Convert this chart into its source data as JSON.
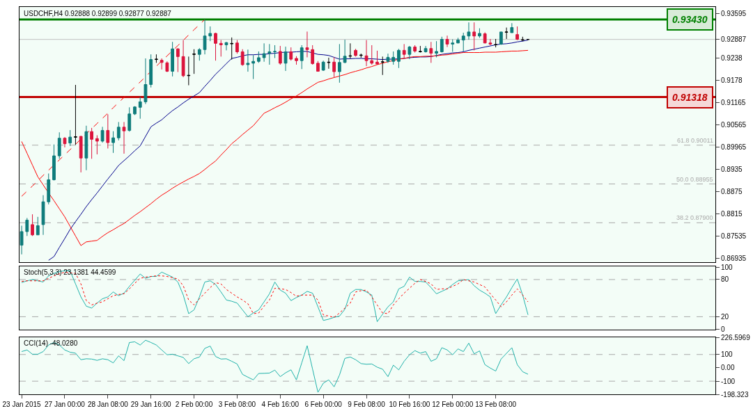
{
  "chart_data": [
    {
      "type": "candlestick",
      "title": "USDCHF,H4 0.92888 0.92899 0.92877 0.92887",
      "ohlc": [
        [
          0.8729,
          0.8782,
          0.8704,
          0.8766
        ],
        [
          0.8766,
          0.8803,
          0.8754,
          0.8797
        ],
        [
          0.8785,
          0.8813,
          0.8754,
          0.8757
        ],
        [
          0.8757,
          0.8806,
          0.8757,
          0.8782
        ],
        [
          0.8785,
          0.8865,
          0.8757,
          0.8847
        ],
        [
          0.8847,
          0.8924,
          0.884,
          0.8907
        ],
        [
          0.8907,
          0.9003,
          0.8905,
          0.8972
        ],
        [
          0.8972,
          0.9036,
          0.8964,
          0.902
        ],
        [
          0.902,
          0.9023,
          0.8995,
          0.9005
        ],
        [
          0.9007,
          0.9042,
          0.8999,
          0.9023
        ],
        [
          0.9024,
          0.9165,
          0.9002,
          0.9023
        ],
        [
          0.9025,
          0.9026,
          0.8927,
          0.8966
        ],
        [
          0.8966,
          0.9054,
          0.8933,
          0.9038
        ],
        [
          0.9038,
          0.9048,
          0.8964,
          0.9017
        ],
        [
          0.9019,
          0.9028,
          0.8976,
          0.9012
        ],
        [
          0.9012,
          0.9051,
          0.9008,
          0.9041
        ],
        [
          0.9041,
          0.9085,
          0.8992,
          0.9008
        ],
        [
          0.9008,
          0.9039,
          0.898,
          0.9021
        ],
        [
          0.9021,
          0.9064,
          0.9014,
          0.905
        ],
        [
          0.905,
          0.9064,
          0.8978,
          0.904
        ],
        [
          0.9041,
          0.9104,
          0.9038,
          0.9086
        ],
        [
          0.9086,
          0.9107,
          0.9083,
          0.9105
        ],
        [
          0.9104,
          0.9133,
          0.9073,
          0.9119
        ],
        [
          0.9119,
          0.9237,
          0.9113,
          0.9166
        ],
        [
          0.9166,
          0.9248,
          0.9158,
          0.9234
        ],
        [
          0.9234,
          0.9248,
          0.9225,
          0.9235
        ],
        [
          0.9232,
          0.9237,
          0.9207,
          0.9226
        ],
        [
          0.9225,
          0.9229,
          0.92,
          0.9202
        ],
        [
          0.9202,
          0.9282,
          0.9188,
          0.9263
        ],
        [
          0.9263,
          0.9265,
          0.92,
          0.9242
        ],
        [
          0.9242,
          0.9287,
          0.9186,
          0.919
        ],
        [
          0.919,
          0.9242,
          0.9164,
          0.9191
        ],
        [
          0.9248,
          0.9262,
          0.9195,
          0.9249
        ],
        [
          0.9248,
          0.9265,
          0.9231,
          0.9261
        ],
        [
          0.9261,
          0.9343,
          0.9248,
          0.9298
        ],
        [
          0.9298,
          0.9324,
          0.9284,
          0.9305
        ],
        [
          0.9305,
          0.9307,
          0.9231,
          0.9278
        ],
        [
          0.9278,
          0.9287,
          0.9242,
          0.9274
        ],
        [
          0.9274,
          0.9282,
          0.9259,
          0.928
        ],
        [
          0.9278,
          0.9294,
          0.9234,
          0.9277
        ],
        [
          0.9279,
          0.9287,
          0.925,
          0.9255
        ],
        [
          0.9255,
          0.9262,
          0.9217,
          0.922
        ],
        [
          0.922,
          0.9261,
          0.9201,
          0.9224
        ],
        [
          0.9224,
          0.9246,
          0.9181,
          0.9229
        ],
        [
          0.9229,
          0.9256,
          0.9225,
          0.9239
        ],
        [
          0.9239,
          0.9278,
          0.9228,
          0.925
        ],
        [
          0.9251,
          0.9276,
          0.922,
          0.9255
        ],
        [
          0.9255,
          0.9273,
          0.9238,
          0.9256
        ],
        [
          0.9256,
          0.9271,
          0.922,
          0.9224
        ],
        [
          0.9224,
          0.9269,
          0.9203,
          0.9255
        ],
        [
          0.9255,
          0.9267,
          0.9231,
          0.9235
        ],
        [
          0.9237,
          0.9243,
          0.922,
          0.9231
        ],
        [
          0.9231,
          0.9273,
          0.9208,
          0.9266
        ],
        [
          0.9266,
          0.931,
          0.924,
          0.9261
        ],
        [
          0.9261,
          0.9273,
          0.922,
          0.9223
        ],
        [
          0.9224,
          0.923,
          0.9201,
          0.9202
        ],
        [
          0.9205,
          0.9231,
          0.9203,
          0.9227
        ],
        [
          0.9227,
          0.9239,
          0.9209,
          0.9226
        ],
        [
          0.9227,
          0.924,
          0.9185,
          0.9201
        ],
        [
          0.9201,
          0.9276,
          0.9171,
          0.9226
        ],
        [
          0.9226,
          0.9288,
          0.9224,
          0.9243
        ],
        [
          0.9243,
          0.9278,
          0.9237,
          0.9244
        ],
        [
          0.9259,
          0.9263,
          0.9242,
          0.9245
        ],
        [
          0.9245,
          0.925,
          0.9239,
          0.9246
        ],
        [
          0.9244,
          0.9287,
          0.9216,
          0.9231
        ],
        [
          0.9231,
          0.9273,
          0.922,
          0.9224
        ],
        [
          0.9227,
          0.9258,
          0.922,
          0.9222
        ],
        [
          0.9228,
          0.9242,
          0.9192,
          0.9227
        ],
        [
          0.9229,
          0.925,
          0.9225,
          0.924
        ],
        [
          0.9229,
          0.9256,
          0.922,
          0.924
        ],
        [
          0.9229,
          0.9263,
          0.9211,
          0.9259
        ],
        [
          0.9259,
          0.9276,
          0.9237,
          0.9248
        ],
        [
          0.9248,
          0.9271,
          0.9235,
          0.9268
        ],
        [
          0.9268,
          0.9273,
          0.9253,
          0.9257
        ],
        [
          0.9255,
          0.9271,
          0.9253,
          0.9256
        ],
        [
          0.9255,
          0.9271,
          0.9253,
          0.9264
        ],
        [
          0.9264,
          0.9282,
          0.9225,
          0.9251
        ],
        [
          0.9251,
          0.9284,
          0.924,
          0.9256
        ],
        [
          0.9255,
          0.9296,
          0.9253,
          0.9289
        ],
        [
          0.9289,
          0.9299,
          0.9268,
          0.9276
        ],
        [
          0.9276,
          0.9289,
          0.9255,
          0.9279
        ],
        [
          0.9279,
          0.9293,
          0.9278,
          0.9287
        ],
        [
          0.9287,
          0.9307,
          0.9256,
          0.9298
        ],
        [
          0.9298,
          0.9335,
          0.9288,
          0.9309
        ],
        [
          0.9309,
          0.9335,
          0.9259,
          0.9298
        ],
        [
          0.9298,
          0.9319,
          0.9293,
          0.9305
        ],
        [
          0.9304,
          0.9308,
          0.9278,
          0.9279
        ],
        [
          0.9279,
          0.929,
          0.9273,
          0.9276
        ],
        [
          0.9275,
          0.929,
          0.9267,
          0.9274
        ],
        [
          0.9276,
          0.9309,
          0.9274,
          0.9309
        ],
        [
          0.9308,
          0.9321,
          0.929,
          0.9309
        ],
        [
          0.9307,
          0.9333,
          0.9307,
          0.9321
        ],
        [
          0.9302,
          0.9324,
          0.9287,
          0.9289
        ],
        [
          0.9288,
          0.9296,
          0.9284,
          0.9287
        ],
        [
          0.92888,
          0.92899,
          0.92877,
          0.92887
        ]
      ],
      "colors": [
        "#0e7c7b",
        "#0e7c7b",
        "#dc143c",
        "#0e7c7b",
        "#0e7c7b",
        "#0e7c7b",
        "#0e7c7b",
        "#0e7c7b",
        "#dc143c",
        "#0e7c7b",
        "#000000",
        "#dc143c",
        "#0e7c7b",
        "#dc143c",
        "#dc143c",
        "#0e7c7b",
        "#dc143c",
        "#0e7c7b",
        "#0e7c7b",
        "#dc143c",
        "#0e7c7b",
        "#0e7c7b",
        "#0e7c7b",
        "#0e7c7b",
        "#0e7c7b",
        "#000000",
        "#dc143c",
        "#dc143c",
        "#0e7c7b",
        "#dc143c",
        "#dc143c",
        "#000000",
        "#000000",
        "#0e7c7b",
        "#0e7c7b",
        "#0e7c7b",
        "#dc143c",
        "#dc143c",
        "#0e7c7b",
        "#000000",
        "#dc143c",
        "#dc143c",
        "#0e7c7b",
        "#0e7c7b",
        "#0e7c7b",
        "#0e7c7b",
        "#0e7c7b",
        "#0e7c7b",
        "#dc143c",
        "#0e7c7b",
        "#dc143c",
        "#dc143c",
        "#0e7c7b",
        "#dc143c",
        "#dc143c",
        "#dc143c",
        "#0e7c7b",
        "#000000",
        "#dc143c",
        "#0e7c7b",
        "#0e7c7b",
        "#000000",
        "#dc143c",
        "#000000",
        "#dc143c",
        "#dc143c",
        "#dc143c",
        "#000000",
        "#0e7c7b",
        "#0e7c7b",
        "#0e7c7b",
        "#dc143c",
        "#0e7c7b",
        "#dc143c",
        "#000000",
        "#0e7c7b",
        "#dc143c",
        "#0e7c7b",
        "#0e7c7b",
        "#dc143c",
        "#0e7c7b",
        "#0e7c7b",
        "#0e7c7b",
        "#0e7c7b",
        "#dc143c",
        "#0e7c7b",
        "#dc143c",
        "#dc143c",
        "#000000",
        "#0e7c7b",
        "#000000",
        "#0e7c7b",
        "#dc143c",
        "#000000",
        "#000000"
      ],
      "series": [
        {
          "type": "line",
          "color": "#00008b",
          "values": [
            null,
            null,
            null,
            null,
            null,
            0.8688,
            0.8698,
            0.8723,
            0.8747,
            0.8772,
            0.8793,
            0.8813,
            0.8834,
            0.8853,
            0.8871,
            0.889,
            0.8909,
            0.8927,
            0.8946,
            0.8959,
            0.8972,
            0.8986,
            0.8999,
            0.9025,
            0.9051,
            0.9061,
            0.907,
            0.9083,
            0.9095,
            0.9105,
            0.9116,
            0.9126,
            0.9135,
            0.9144,
            0.9161,
            0.9177,
            0.9194,
            0.9208,
            0.9223,
            0.9237,
            0.924,
            0.9244,
            0.9247,
            0.9247,
            0.9248,
            0.9248,
            0.925,
            0.9251,
            0.9253,
            0.9254,
            0.9254,
            0.9255,
            0.9256,
            0.9256,
            0.9252,
            0.9248,
            0.9247,
            0.9245,
            0.924,
            0.9235,
            0.9236,
            0.9236,
            0.9237,
            0.9237,
            0.9236,
            0.9236,
            0.9235,
            0.9234,
            0.9235,
            0.9235,
            0.9236,
            0.9237,
            0.9239,
            0.924,
            0.9241,
            0.9241,
            0.9242,
            0.9245,
            0.9248,
            0.925,
            0.9252,
            0.9253,
            0.9255,
            0.9259,
            0.9262,
            0.9265,
            0.9268,
            0.9271,
            0.9274,
            0.9276,
            0.9277,
            0.9279,
            0.9282,
            0.9284,
            0.9287
          ]
        },
        {
          "type": "line",
          "color": "#ff0000",
          "values": [
            0.9011,
            0.8979,
            0.8947,
            0.8915,
            0.8893,
            0.8871,
            0.885,
            0.8828,
            0.8806,
            0.878,
            0.8754,
            0.8728,
            0.8738,
            0.874,
            0.8742,
            0.8753,
            0.8763,
            0.8771,
            0.878,
            0.8788,
            0.8799,
            0.881,
            0.882,
            0.8831,
            0.8842,
            0.8854,
            0.8865,
            0.8874,
            0.8884,
            0.8893,
            0.8901,
            0.8909,
            0.8916,
            0.8924,
            0.8935,
            0.8947,
            0.8958,
            0.8974,
            0.8989,
            0.9005,
            0.9017,
            0.903,
            0.9042,
            0.9054,
            0.9071,
            0.9088,
            0.9095,
            0.9103,
            0.911,
            0.9118,
            0.9127,
            0.9135,
            0.9144,
            0.9154,
            0.9163,
            0.9172,
            0.9176,
            0.9181,
            0.9185,
            0.9189,
            0.9193,
            0.9198,
            0.9202,
            0.9206,
            0.9211,
            0.9215,
            0.922,
            0.9224,
            0.9228,
            0.9231,
            0.9235,
            0.9237,
            0.924,
            0.9242,
            0.9242,
            0.9243,
            0.9243,
            0.9244,
            0.9246,
            0.9247,
            0.9249,
            0.9251,
            0.9253,
            0.9253,
            0.9253,
            0.9253,
            0.9254,
            0.9254,
            0.9254,
            0.9255,
            0.9256,
            0.9257,
            0.9257,
            0.9258,
            0.9259
          ]
        },
        {
          "type": "line",
          "color": "#ff0000",
          "line_style": "dashed",
          "values": [
            0.8862,
            0.8876,
            0.889,
            0.8904,
            0.8919,
            0.8933,
            0.8947,
            0.8961,
            0.8975,
            0.8989,
            0.9003,
            0.9018,
            0.9032,
            0.9046,
            0.906,
            0.9074,
            0.9088,
            0.9103,
            0.9117,
            0.9131,
            0.9145,
            0.9159,
            0.9173,
            0.9187,
            0.9202,
            0.9216,
            0.923,
            0.9244,
            0.9258,
            0.9272,
            0.9286,
            0.9301,
            0.9315,
            0.9329,
            0.9343,
            null,
            null,
            null,
            null,
            null,
            null,
            null,
            null,
            null,
            null,
            null,
            null,
            null,
            null,
            null,
            null,
            null,
            null,
            null,
            null,
            null,
            null,
            null,
            null,
            null,
            null,
            null,
            null,
            null,
            null,
            null,
            null,
            null,
            null,
            null,
            null,
            null,
            null,
            null,
            null,
            null,
            null,
            null,
            null,
            null,
            null,
            null,
            null,
            null,
            null,
            null,
            null,
            null,
            null,
            null,
            null,
            null,
            null,
            null,
            null
          ]
        }
      ],
      "ylim": [
        0.8682,
        0.9377
      ],
      "yticks": [
        0.93595,
        0.92887,
        0.9238,
        0.9178,
        0.91165,
        0.90565,
        0.89965,
        0.8935,
        0.8875,
        0.8815,
        0.87535,
        0.86935
      ],
      "ref_lines": [
        {
          "axis": "y",
          "value": 0.92887,
          "color": "#c0c0c0",
          "line_style": "solid"
        },
        {
          "axis": "y",
          "value": 0.9343,
          "label": "0.93430",
          "color": "#008000",
          "line_style": "solid"
        },
        {
          "axis": "y",
          "value": 0.91318,
          "label": "0.91318",
          "color": "#c00000",
          "line_style": "solid"
        },
        {
          "axis": "y",
          "value": 0.90011,
          "label": "61.8 0.90011",
          "color": "#a9a9a9",
          "line_style": "dashed"
        },
        {
          "axis": "y",
          "value": 0.88955,
          "label": "50.0 0.88955",
          "color": "#a9a9a9",
          "line_style": "dashed"
        },
        {
          "axis": "y",
          "value": 0.879,
          "label": "38.2 0.87900",
          "color": "#a9a9a9",
          "line_style": "dashed"
        }
      ],
      "tick_labels": "y"
    },
    {
      "type": "line",
      "title": "Stoch(5,3,3) 23.1381 44.4599",
      "series": [
        {
          "color": "#20b2aa",
          "values": [
            75,
            78,
            80,
            78,
            76,
            86,
            90,
            93,
            94,
            94,
            73,
            52,
            37,
            34,
            42,
            49,
            52,
            60,
            54,
            58,
            69,
            79,
            89,
            82,
            85,
            85,
            92,
            88,
            84,
            76,
            55,
            25,
            31,
            52,
            76,
            78,
            72,
            60,
            47,
            45,
            42,
            31,
            20,
            26,
            31,
            44,
            57,
            76,
            63,
            58,
            46,
            51,
            55,
            61,
            58,
            36,
            14,
            16,
            19,
            21,
            32,
            58,
            64,
            64,
            60,
            55,
            12,
            24,
            36,
            44,
            65,
            69,
            84,
            77,
            77,
            76,
            67,
            57,
            61,
            65,
            72,
            78,
            79,
            80,
            70,
            63,
            58,
            52,
            25,
            39,
            52,
            67,
            81,
            55,
            23
          ]
        },
        {
          "color": "#ff0000",
          "line_style": "dotted",
          "values": [
            77,
            78,
            78,
            78,
            78,
            82,
            86,
            89,
            92,
            91,
            90,
            73,
            46,
            39,
            42,
            44,
            49,
            54,
            56,
            57,
            65,
            74,
            82,
            84,
            85,
            86,
            86,
            85,
            83,
            81,
            70,
            47,
            39,
            49,
            58,
            67,
            75,
            73,
            64,
            58,
            52,
            47,
            41,
            25,
            26,
            37,
            47,
            66,
            65,
            64,
            59,
            53,
            55,
            55,
            55,
            47,
            23,
            21,
            19,
            26,
            34,
            42,
            60,
            62,
            63,
            52,
            39,
            26,
            25,
            39,
            49,
            58,
            66,
            74,
            80,
            77,
            73,
            64,
            65,
            65,
            69,
            73,
            80,
            78,
            76,
            72,
            68,
            57,
            47,
            36,
            44,
            55,
            65,
            55,
            44
          ]
        }
      ],
      "ylim": [
        -0.5,
        101
      ],
      "yticks": [
        100,
        80,
        20,
        0
      ],
      "ref_lines": [
        {
          "axis": "y",
          "value": 80,
          "color": "#a9a9a9",
          "line_style": "dashed"
        },
        {
          "axis": "y",
          "value": 20,
          "color": "#a9a9a9",
          "line_style": "dashed"
        }
      ],
      "tick_labels": "y"
    },
    {
      "type": "line",
      "title": "CCI(14) -48.0280",
      "categories": [
        "23 Jan 2015",
        null,
        null,
        null,
        null,
        null,
        null,
        null,
        "27 Jan 00:00",
        null,
        null,
        null,
        null,
        null,
        null,
        null,
        "28 Jan 08:00",
        null,
        null,
        null,
        null,
        null,
        null,
        null,
        "29 Jan 16:00",
        null,
        null,
        null,
        null,
        null,
        null,
        null,
        "2 Feb 00:00",
        null,
        null,
        null,
        null,
        null,
        null,
        null,
        "3 Feb 08:00",
        null,
        null,
        null,
        null,
        null,
        null,
        null,
        "4 Feb 16:00",
        null,
        null,
        null,
        null,
        null,
        null,
        null,
        "6 Feb 00:00",
        null,
        null,
        null,
        null,
        null,
        null,
        null,
        "9 Feb 08:00",
        null,
        null,
        null,
        null,
        null,
        null,
        null,
        "10 Feb 16:00",
        null,
        null,
        null,
        null,
        null,
        null,
        null,
        "12 Feb 00:00",
        null,
        null,
        null,
        null,
        null,
        null,
        null,
        "13 Feb 08:00",
        null,
        null,
        null,
        null,
        null,
        null
      ],
      "series": [
        {
          "color": "#20b2aa",
          "values": [
            122,
            134,
            102,
            102,
            122,
            171,
            190,
            171,
            134,
            117,
            110,
            61,
            68,
            66,
            56,
            68,
            61,
            37,
            90,
            54,
            190,
            195,
            171,
            207,
            190,
            171,
            134,
            98,
            102,
            90,
            78,
            32,
            68,
            81,
            146,
            163,
            85,
            66,
            68,
            49,
            29,
            -49,
            -70,
            -90,
            -42,
            -41,
            -39,
            -17,
            -66,
            -37,
            -15,
            -90,
            38,
            166,
            -9,
            -183,
            -115,
            -90,
            -142,
            -54,
            71,
            81,
            61,
            32,
            27,
            29,
            5,
            -10,
            -66,
            20,
            -15,
            49,
            98,
            129,
            110,
            122,
            49,
            68,
            151,
            134,
            98,
            142,
            122,
            185,
            105,
            127,
            24,
            -2,
            -24,
            66,
            109,
            151,
            24,
            -29,
            -48
          ]
        }
      ],
      "ylim": [
        -198.323,
        226.5969
      ],
      "yticks": [
        226.5969,
        100,
        {
          "value": 0,
          "label": "0.00"
        },
        -100,
        -198.323
      ],
      "ref_lines": [
        {
          "axis": "y",
          "value": 100,
          "color": "#a9a9a9",
          "line_style": "dashed"
        },
        {
          "axis": "y",
          "value": -100,
          "color": "#a9a9a9",
          "line_style": "dashed"
        }
      ]
    }
  ]
}
